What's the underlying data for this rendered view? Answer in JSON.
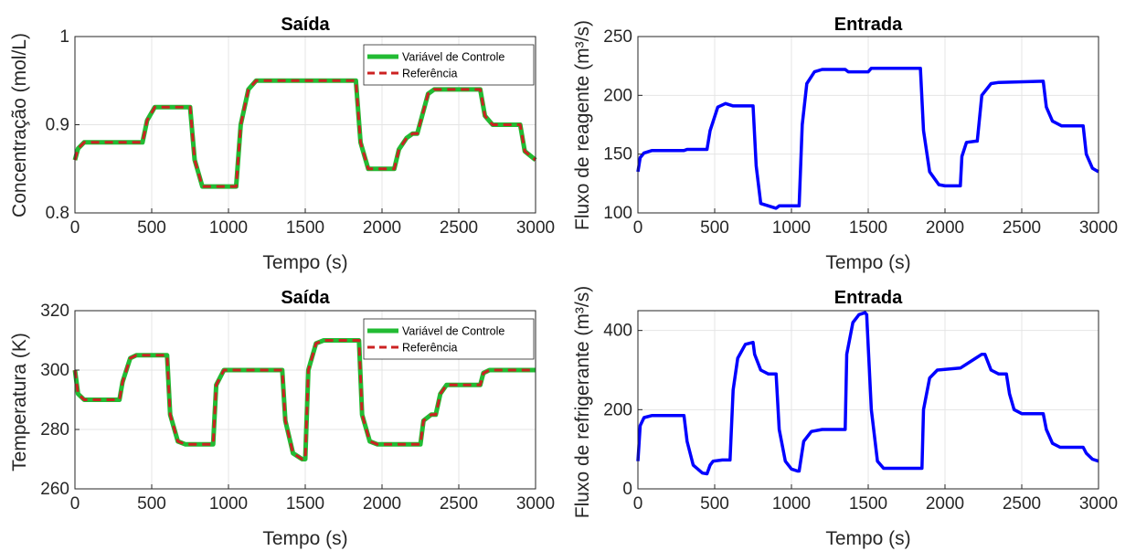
{
  "chart_data": [
    {
      "type": "line",
      "title": "Saída",
      "xlabel": "Tempo (s)",
      "ylabel": "Concentração (mol/L)",
      "xlim": [
        0,
        3000
      ],
      "ylim": [
        0.8,
        1.0
      ],
      "xticks": [
        0,
        500,
        1000,
        1500,
        2000,
        2500,
        3000
      ],
      "yticks": [
        0.8,
        0.9,
        1.0
      ],
      "ytick_labels": [
        "0.8",
        "0.9",
        "1"
      ],
      "grid": true,
      "legend_position": "top-right",
      "legend": [
        "Variável de Controle",
        "Referência"
      ],
      "series": [
        {
          "name": "Variável de Controle",
          "color": "#22bb33",
          "style": "solid",
          "x": [
            0,
            20,
            60,
            440,
            470,
            520,
            750,
            780,
            830,
            1050,
            1080,
            1130,
            1180,
            1830,
            1860,
            1910,
            2080,
            2110,
            2160,
            2200,
            2230,
            2300,
            2340,
            2400,
            2640,
            2670,
            2720,
            2900,
            2930,
            3000
          ],
          "y": [
            0.86,
            0.873,
            0.88,
            0.88,
            0.905,
            0.92,
            0.92,
            0.86,
            0.83,
            0.83,
            0.9,
            0.94,
            0.95,
            0.95,
            0.88,
            0.85,
            0.85,
            0.872,
            0.885,
            0.89,
            0.89,
            0.935,
            0.94,
            0.94,
            0.94,
            0.91,
            0.9,
            0.9,
            0.87,
            0.86
          ]
        },
        {
          "name": "Referência",
          "color": "#cc2222",
          "style": "dashed",
          "x": [
            0,
            20,
            60,
            440,
            470,
            520,
            750,
            780,
            830,
            1050,
            1080,
            1130,
            1180,
            1830,
            1860,
            1910,
            2080,
            2110,
            2160,
            2200,
            2230,
            2300,
            2340,
            2400,
            2640,
            2670,
            2720,
            2900,
            2930,
            3000
          ],
          "y": [
            0.86,
            0.873,
            0.88,
            0.88,
            0.905,
            0.92,
            0.92,
            0.86,
            0.83,
            0.83,
            0.9,
            0.94,
            0.95,
            0.95,
            0.88,
            0.85,
            0.85,
            0.872,
            0.885,
            0.89,
            0.89,
            0.935,
            0.94,
            0.94,
            0.94,
            0.91,
            0.9,
            0.9,
            0.87,
            0.86
          ]
        }
      ]
    },
    {
      "type": "line",
      "title": "Entrada",
      "xlabel": "Tempo (s)",
      "ylabel": "Fluxo de reagente (m³/s)",
      "xlim": [
        0,
        3000
      ],
      "ylim": [
        100,
        250
      ],
      "xticks": [
        0,
        500,
        1000,
        1500,
        2000,
        2500,
        3000
      ],
      "yticks": [
        100,
        150,
        200,
        250
      ],
      "ytick_labels": [
        "100",
        "150",
        "200",
        "250"
      ],
      "grid": true,
      "series": [
        {
          "name": "",
          "color": "#0000ff",
          "style": "solid",
          "x": [
            0,
            15,
            40,
            90,
            300,
            320,
            450,
            470,
            520,
            570,
            620,
            640,
            750,
            770,
            800,
            900,
            920,
            1050,
            1070,
            1100,
            1150,
            1200,
            1350,
            1370,
            1500,
            1520,
            1840,
            1860,
            1900,
            1960,
            2000,
            2100,
            2110,
            2140,
            2200,
            2210,
            2240,
            2300,
            2350,
            2640,
            2660,
            2700,
            2760,
            2900,
            2920,
            2960,
            3000
          ],
          "y": [
            135,
            147,
            151,
            153,
            153,
            154,
            154,
            170,
            190,
            193,
            191,
            191,
            191,
            140,
            108,
            104,
            106,
            106,
            175,
            210,
            220,
            222,
            222,
            220,
            220,
            223,
            223,
            170,
            135,
            124,
            123,
            123,
            148,
            160,
            161,
            161,
            200,
            210,
            211,
            212,
            190,
            178,
            174,
            174,
            150,
            138,
            135
          ]
        }
      ]
    },
    {
      "type": "line",
      "title": "Saída",
      "xlabel": "Tempo (s)",
      "ylabel": "Temperatura (K)",
      "xlim": [
        0,
        3000
      ],
      "ylim": [
        260,
        320
      ],
      "xticks": [
        0,
        500,
        1000,
        1500,
        2000,
        2500,
        3000
      ],
      "yticks": [
        260,
        280,
        300,
        320
      ],
      "ytick_labels": [
        "260",
        "280",
        "300",
        "320"
      ],
      "grid": true,
      "legend_position": "top-right",
      "legend": [
        "Variável de Controle",
        "Referência"
      ],
      "series": [
        {
          "name": "Variável de Controle",
          "color": "#22bb33",
          "style": "solid",
          "x": [
            0,
            20,
            60,
            290,
            310,
            360,
            400,
            600,
            620,
            670,
            720,
            900,
            920,
            970,
            1020,
            1350,
            1370,
            1420,
            1480,
            1500,
            1520,
            1570,
            1620,
            1850,
            1870,
            1920,
            1970,
            2250,
            2270,
            2320,
            2350,
            2380,
            2420,
            2460,
            2500,
            2640,
            2660,
            2700,
            3000
          ],
          "y": [
            300,
            292,
            290,
            290,
            296,
            304,
            305,
            305,
            285,
            276,
            275,
            275,
            295,
            300,
            300,
            300,
            283,
            272,
            270,
            270,
            300,
            309,
            310,
            310,
            285,
            276,
            275,
            275,
            283,
            285,
            285,
            292,
            295,
            295,
            295,
            295,
            299,
            300,
            300
          ]
        },
        {
          "name": "Referência",
          "color": "#cc2222",
          "style": "dashed",
          "x": [
            0,
            20,
            60,
            290,
            310,
            360,
            400,
            600,
            620,
            670,
            720,
            900,
            920,
            970,
            1020,
            1350,
            1370,
            1420,
            1480,
            1500,
            1520,
            1570,
            1620,
            1850,
            1870,
            1920,
            1970,
            2250,
            2270,
            2320,
            2350,
            2380,
            2420,
            2460,
            2500,
            2640,
            2660,
            2700,
            3000
          ],
          "y": [
            300,
            292,
            290,
            290,
            296,
            304,
            305,
            305,
            285,
            276,
            275,
            275,
            295,
            300,
            300,
            300,
            283,
            272,
            270,
            270,
            300,
            309,
            310,
            310,
            285,
            276,
            275,
            275,
            283,
            285,
            285,
            292,
            295,
            295,
            295,
            295,
            299,
            300,
            300
          ]
        }
      ]
    },
    {
      "type": "line",
      "title": "Entrada",
      "xlabel": "Tempo (s)",
      "ylabel": "Fluxo de refrigerante (m³/s)",
      "xlim": [
        0,
        3000
      ],
      "ylim": [
        0,
        450
      ],
      "xticks": [
        0,
        500,
        1000,
        1500,
        2000,
        2500,
        3000
      ],
      "yticks": [
        0,
        200,
        400
      ],
      "ytick_labels": [
        "0",
        "200",
        "400"
      ],
      "grid": true,
      "series": [
        {
          "name": "",
          "color": "#0000ff",
          "style": "solid",
          "x": [
            0,
            15,
            40,
            90,
            300,
            320,
            360,
            420,
            450,
            470,
            490,
            550,
            600,
            620,
            650,
            700,
            750,
            760,
            800,
            850,
            900,
            920,
            960,
            1000,
            1040,
            1050,
            1080,
            1130,
            1200,
            1350,
            1360,
            1400,
            1440,
            1480,
            1490,
            1520,
            1560,
            1600,
            1850,
            1860,
            1900,
            1950,
            2100,
            2200,
            2240,
            2260,
            2300,
            2350,
            2400,
            2420,
            2450,
            2500,
            2640,
            2660,
            2700,
            2750,
            2900,
            2920,
            2960,
            3000
          ],
          "y": [
            70,
            160,
            180,
            185,
            185,
            120,
            60,
            40,
            38,
            60,
            70,
            73,
            73,
            250,
            330,
            365,
            370,
            340,
            300,
            290,
            290,
            150,
            70,
            50,
            45,
            45,
            120,
            145,
            150,
            150,
            340,
            420,
            440,
            445,
            440,
            200,
            70,
            52,
            52,
            200,
            280,
            300,
            305,
            330,
            340,
            340,
            300,
            290,
            290,
            240,
            200,
            190,
            190,
            150,
            115,
            105,
            105,
            90,
            75,
            70
          ]
        }
      ]
    }
  ]
}
